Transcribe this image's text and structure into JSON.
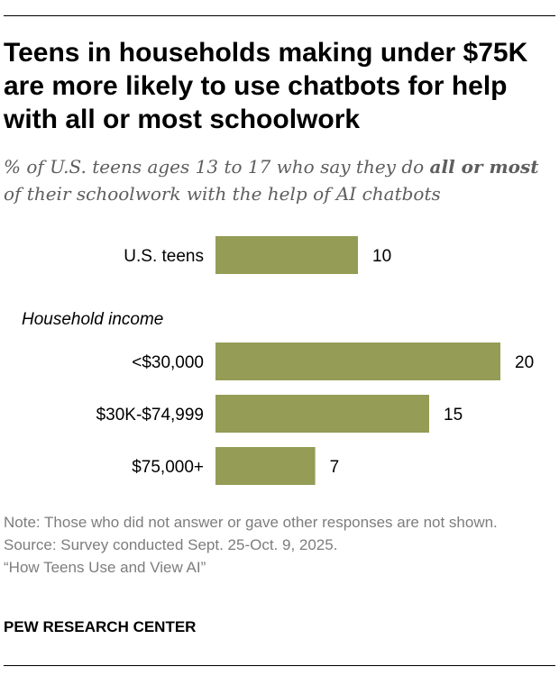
{
  "title": "Teens in households making under $75K are more likely to use chatbots for help with all or most schoolwork",
  "subtitle": {
    "part1": "% of U.S. teens ages 13 to 17 who say they do ",
    "bold": "all or most",
    "part2": " of their schoolwork with the help of AI chatbots"
  },
  "chart_data": {
    "type": "bar",
    "orientation": "horizontal",
    "bar_color": "#949c55",
    "group_label": "Household income",
    "categories": [
      "U.S. teens",
      "<$30,000",
      "$30K-$74,999",
      "$75,000+"
    ],
    "values": [
      10,
      20,
      15,
      7
    ],
    "xlim": [
      0,
      20
    ],
    "grid": false
  },
  "footer": {
    "note": "Note: Those who did not answer or gave other responses are not shown.",
    "source": "Source: Survey conducted Sept. 25-Oct. 9, 2025.",
    "report": "“How Teens Use and View AI”",
    "brand": "PEW RESEARCH CENTER"
  }
}
